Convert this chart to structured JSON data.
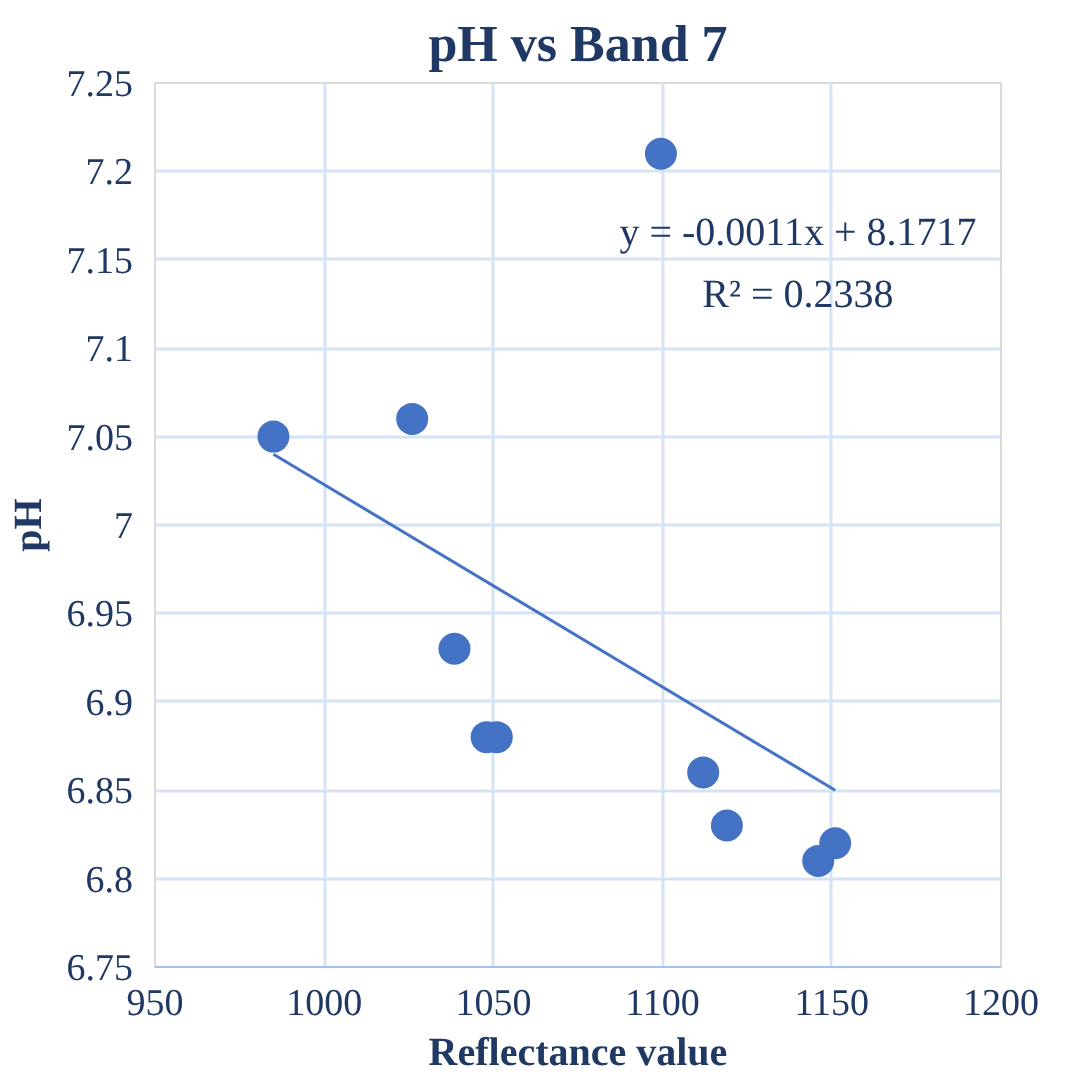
{
  "chart_data": {
    "type": "scatter",
    "title": "pH vs Band 7",
    "xlabel": "Reflectance value",
    "ylabel": "pH",
    "series": [
      {
        "color": "#4472c4",
        "marker": "circle",
        "x": [
          985,
          1026,
          1038.5,
          1048,
          1051,
          1099.5,
          1112,
          1119,
          1146,
          1151
        ],
        "values": [
          7.05,
          7.06,
          6.93,
          6.88,
          6.88,
          7.21,
          6.86,
          6.83,
          6.81,
          6.82
        ]
      },
      {
        "type": "line",
        "color": "#4472c4",
        "x": [
          985,
          1151
        ],
        "values": [
          7.04,
          6.85
        ]
      }
    ],
    "annotations": [
      "y = -0.0011x + 8.1717",
      "R² = 0.2338"
    ],
    "xlim": [
      950,
      1200
    ],
    "xticks": [
      950,
      1000,
      1050,
      1100,
      1150,
      1200
    ],
    "ylim": [
      6.75,
      7.25
    ],
    "yticks": [
      6.75,
      6.8,
      6.85,
      6.9,
      6.95,
      7,
      7.05,
      7.1,
      7.15,
      7.2,
      7.25
    ],
    "grid": true
  }
}
